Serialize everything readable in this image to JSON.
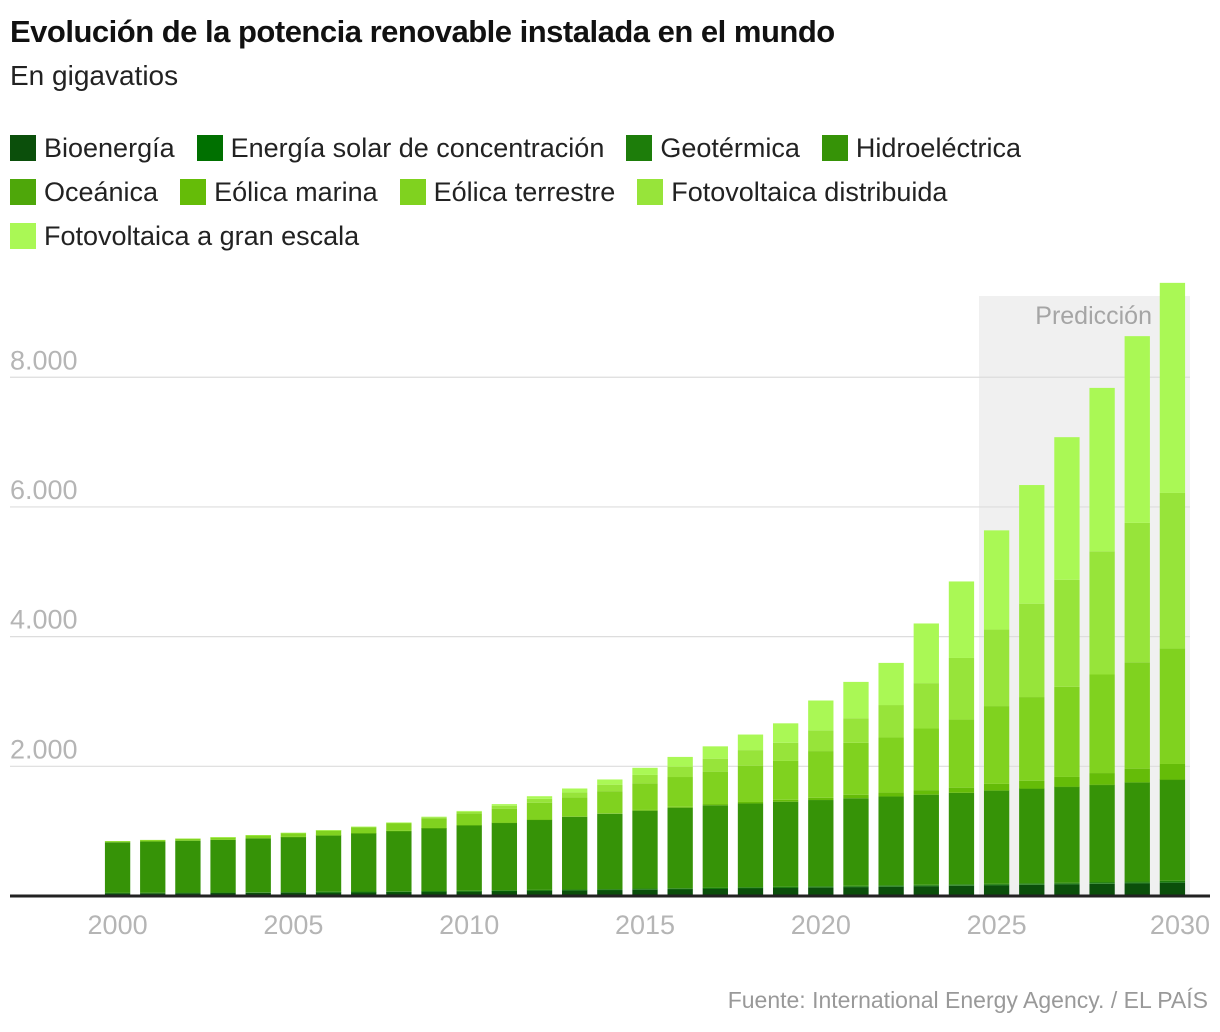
{
  "header": {
    "title": "Evolución de la potencia renovable instalada en el mundo",
    "subtitle": "En gigavatios"
  },
  "source": "Fuente: International Energy Agency. / EL PAÍS",
  "chart_data": {
    "type": "bar",
    "stacked": true,
    "title": "Evolución de la potencia renovable instalada en el mundo",
    "subtitle": "En gigavatios",
    "xlabel": "",
    "ylabel": "",
    "ylim": [
      0,
      9500
    ],
    "yticks": [
      2000,
      4000,
      6000,
      8000
    ],
    "ytick_labels": [
      "2.000",
      "4.000",
      "6.000",
      "8.000"
    ],
    "xtick_years": [
      2000,
      2005,
      2010,
      2015,
      2020,
      2025,
      2030
    ],
    "xtick_labels": [
      "2000",
      "2005",
      "2010",
      "2015",
      "2020",
      "2025",
      "2030"
    ],
    "grid": true,
    "legend_position": "top",
    "annotation": {
      "label": "Predicción",
      "from_year": 2025,
      "to_year": 2030
    },
    "categories": [
      2000,
      2001,
      2002,
      2003,
      2004,
      2005,
      2006,
      2007,
      2008,
      2009,
      2010,
      2011,
      2012,
      2013,
      2014,
      2015,
      2016,
      2017,
      2018,
      2019,
      2020,
      2021,
      2022,
      2023,
      2024,
      2025,
      2026,
      2027,
      2028,
      2029,
      2030
    ],
    "series": [
      {
        "name": "Bioenergía",
        "color": "#0b4f0b",
        "values": [
          40,
          42,
          44,
          46,
          49,
          52,
          55,
          58,
          62,
          66,
          70,
          75,
          80,
          86,
          92,
          98,
          104,
          111,
          118,
          124,
          130,
          137,
          144,
          151,
          158,
          165,
          172,
          180,
          188,
          195,
          205
        ]
      },
      {
        "name": "Energía solar de concentración",
        "color": "#007000",
        "values": [
          0,
          0,
          0,
          0,
          0,
          0,
          1,
          1,
          1,
          1,
          1,
          2,
          3,
          4,
          4,
          5,
          5,
          5,
          6,
          6,
          6,
          6,
          6,
          7,
          7,
          7,
          8,
          8,
          9,
          9,
          10
        ]
      },
      {
        "name": "Geotérmica",
        "color": "#1d7d0a",
        "values": [
          8,
          8,
          9,
          9,
          9,
          9,
          10,
          10,
          10,
          10,
          10,
          11,
          11,
          11,
          12,
          12,
          12,
          13,
          13,
          14,
          14,
          14,
          15,
          15,
          16,
          16,
          17,
          17,
          18,
          19,
          20
        ]
      },
      {
        "name": "Hidroeléctrica",
        "color": "#369307",
        "values": [
          780,
          790,
          800,
          810,
          830,
          850,
          870,
          900,
          930,
          970,
          1010,
          1040,
          1080,
          1120,
          1160,
          1200,
          1240,
          1270,
          1290,
          1310,
          1330,
          1350,
          1370,
          1390,
          1410,
          1440,
          1460,
          1480,
          1500,
          1530,
          1560
        ]
      },
      {
        "name": "Oceánica",
        "color": "#4ea70a",
        "values": [
          0,
          0,
          0,
          0,
          0,
          0,
          0,
          0,
          0,
          0,
          0,
          0,
          0,
          0,
          0,
          0,
          0,
          0,
          0,
          0,
          0,
          0,
          0,
          0,
          0,
          1,
          1,
          1,
          1,
          1,
          1
        ]
      },
      {
        "name": "Eólica marina",
        "color": "#65bc08",
        "values": [
          0,
          0,
          0,
          0,
          0,
          1,
          1,
          1,
          2,
          2,
          3,
          4,
          5,
          7,
          9,
          12,
          14,
          19,
          23,
          29,
          35,
          55,
          60,
          70,
          80,
          100,
          120,
          150,
          180,
          210,
          240
        ]
      },
      {
        "name": "Eólica terrestre",
        "color": "#80d21f",
        "values": [
          17,
          24,
          31,
          39,
          48,
          58,
          72,
          90,
          113,
          148,
          177,
          215,
          260,
          290,
          340,
          410,
          460,
          500,
          560,
          600,
          720,
          800,
          850,
          950,
          1050,
          1200,
          1290,
          1390,
          1520,
          1640,
          1780
        ]
      },
      {
        "name": "Fotovoltaica distribuida",
        "color": "#97e43a",
        "values": [
          1,
          1,
          2,
          2,
          3,
          4,
          5,
          7,
          12,
          18,
          28,
          45,
          60,
          80,
          100,
          130,
          160,
          200,
          240,
          280,
          320,
          380,
          500,
          700,
          950,
          1180,
          1440,
          1650,
          1900,
          2150,
          2400
        ]
      },
      {
        "name": "Fotovoltaica a gran escala",
        "color": "#aaf855",
        "values": [
          0,
          0,
          0,
          1,
          1,
          1,
          2,
          3,
          5,
          8,
          13,
          25,
          40,
          60,
          80,
          110,
          150,
          190,
          240,
          300,
          460,
          560,
          650,
          920,
          1180,
          1530,
          1830,
          2200,
          2520,
          2880,
          3240
        ]
      }
    ]
  }
}
